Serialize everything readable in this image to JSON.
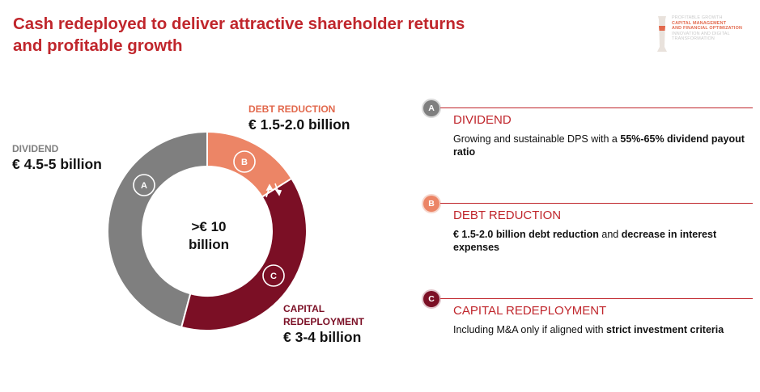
{
  "title": {
    "line1": "Cash redeployed to deliver attractive shareholder returns",
    "line2": "and profitable growth"
  },
  "corner": {
    "line1": "PROFITABLE GROWTH",
    "line2": "CAPITAL MANAGEMENT",
    "line3": "AND FINANCIAL OPTIMIZATION",
    "line4": "INNOVATION AND DIGITAL",
    "line5": "TRANSFORMATION"
  },
  "donut": {
    "center_line1": ">€ 10",
    "center_line2": "billion",
    "segments": [
      {
        "key": "dividend",
        "badge": "A",
        "caption": "DIVIDEND",
        "amount": "€ 4.5-5 billion",
        "color": "#7f7f7f",
        "label_color": "#7f7f7f"
      },
      {
        "key": "debt",
        "badge": "B",
        "caption": "DEBT REDUCTION",
        "amount": "€ 1.5-2.0 billion",
        "color": "#ec8566",
        "label_color": "#e2684c"
      },
      {
        "key": "capital",
        "badge": "C",
        "caption_line1": "CAPITAL",
        "caption_line2": "REDEPLOYMENT",
        "amount": "€ 3-4 billion",
        "color": "#7b0f25",
        "label_color": "#7b0f25"
      }
    ]
  },
  "items": [
    {
      "badge": "A",
      "badge_color": "#7f7f7f",
      "heading": "DIVIDEND",
      "text_plain": "Growing and sustainable DPS with a ",
      "text_bold": "55%-65% dividend payout ratio"
    },
    {
      "badge": "B",
      "badge_color": "#ec8566",
      "heading": "DEBT REDUCTION",
      "text_bold1": "€ 1.5-2.0 billion debt reduction",
      "text_plain": " and ",
      "text_bold2": "decrease in interest expenses"
    },
    {
      "badge": "C",
      "badge_color": "#7b0f25",
      "heading": "CAPITAL REDEPLOYMENT",
      "text_plain": "Including M&A only if aligned with ",
      "text_bold": "strict investment criteria"
    }
  ]
}
